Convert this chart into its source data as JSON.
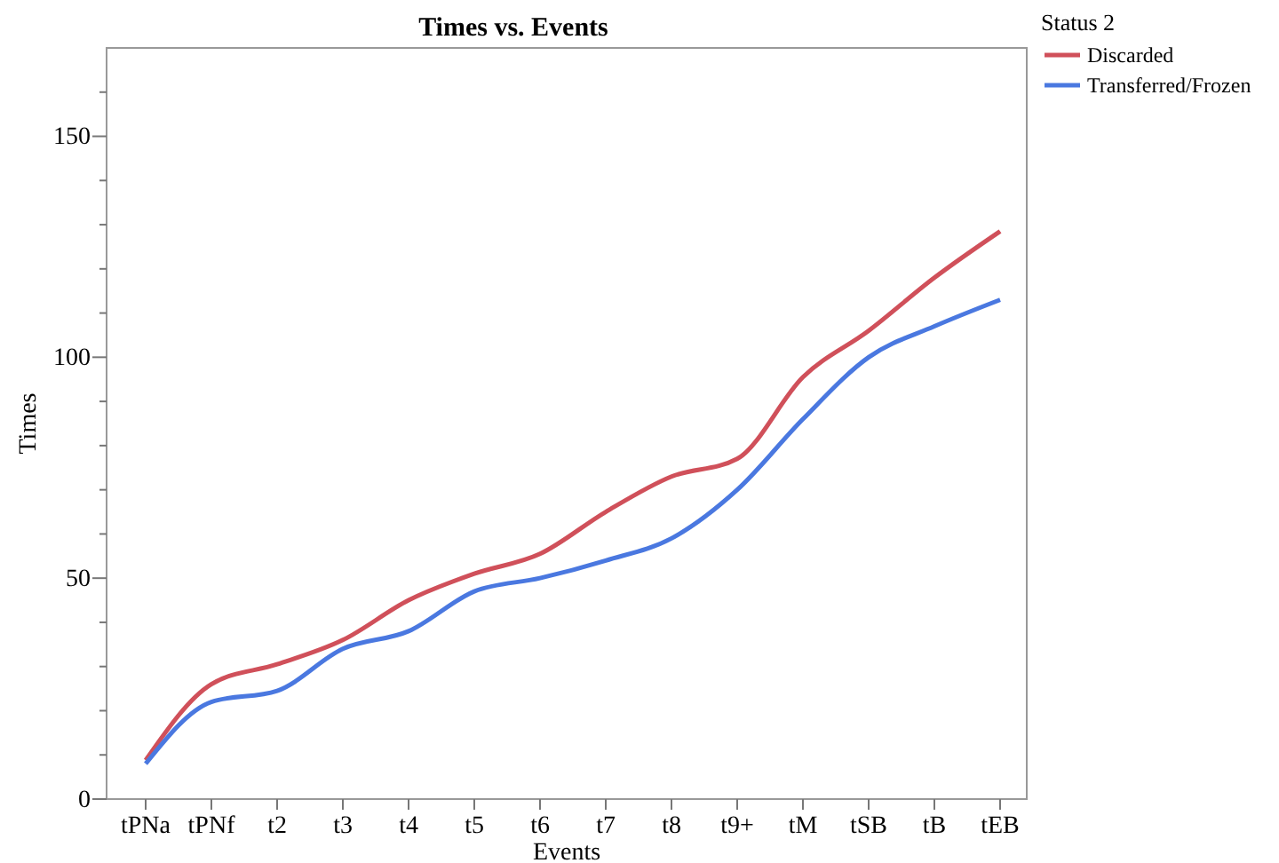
{
  "chart_data": {
    "type": "line",
    "title": "Times vs. Events",
    "xlabel": "Events",
    "ylabel": "Times",
    "legend_title": "Status 2",
    "legend": "top right",
    "grid": false,
    "line_style": "solid",
    "marker": "none",
    "categories": [
      "tPNa",
      "tPNf",
      "t2",
      "t3",
      "t4",
      "t5",
      "t6",
      "t7",
      "t8",
      "t9+",
      "tM",
      "tSB",
      "tB",
      "tEB"
    ],
    "ylim": [
      0,
      170
    ],
    "yticks": [
      0,
      {
        "value": 10,
        "label": null
      },
      {
        "value": 20,
        "label": null
      },
      {
        "value": 30,
        "label": null
      },
      {
        "value": 40,
        "label": null
      },
      50,
      {
        "value": 60,
        "label": null
      },
      {
        "value": 70,
        "label": null
      },
      {
        "value": 80,
        "label": null
      },
      {
        "value": 90,
        "label": null
      },
      100,
      {
        "value": 110,
        "label": null
      },
      {
        "value": 120,
        "label": null
      },
      {
        "value": 130,
        "label": null
      },
      {
        "value": 140,
        "label": null
      },
      150,
      {
        "value": 160,
        "label": null
      }
    ],
    "series": [
      {
        "name": "Discarded",
        "color": "#d0505a",
        "values": [
          8.8,
          26,
          30.5,
          36,
          45,
          51,
          55.5,
          65,
          73,
          77,
          95.5,
          106,
          118,
          128.5
        ]
      },
      {
        "name": "Transferred/Frozen",
        "color": "#4a78e0",
        "values": [
          8,
          22,
          24.5,
          34,
          38,
          47,
          50,
          54,
          59,
          70,
          86,
          100,
          107,
          113
        ]
      }
    ]
  }
}
